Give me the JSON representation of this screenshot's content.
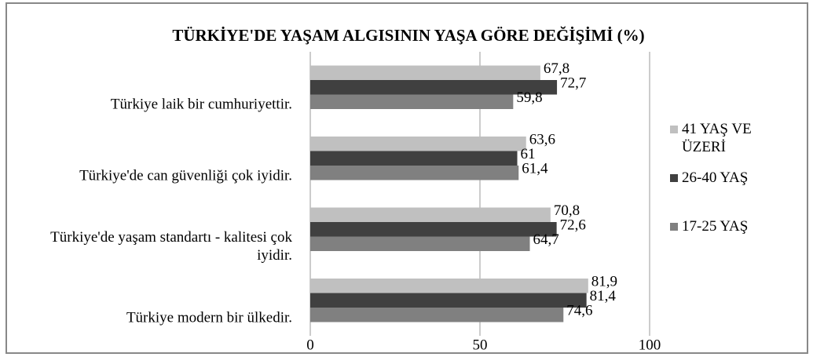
{
  "chart_data": {
    "type": "barh",
    "title": "TÜRKİYE'DE YAŞAM ALGISININ YAŞA GÖRE DEĞİŞİMİ (%)",
    "categories": [
      "Türkiye laik bir cumhuriyettir.",
      "Türkiye'de can güvenliği çok iyidir.",
      "Türkiye'de yaşam standartı - kalitesi çok iyidir.",
      "Türkiye modern bir ülkedir."
    ],
    "series": [
      {
        "name": "41 YAŞ VE ÜZERİ",
        "color": "#c0c0c0",
        "values": [
          67.8,
          63.6,
          70.8,
          81.9
        ],
        "value_labels": [
          "67,8",
          "63,6",
          "70,8",
          "81,9"
        ]
      },
      {
        "name": "26-40 YAŞ",
        "color": "#404040",
        "values": [
          72.7,
          61,
          72.6,
          81.4
        ],
        "value_labels": [
          "72,7",
          "61",
          "72,6",
          "81,4"
        ]
      },
      {
        "name": "17-25 YAŞ",
        "color": "#808080",
        "values": [
          59.8,
          61.4,
          64.7,
          74.6
        ],
        "value_labels": [
          "59,8",
          "61,4",
          "64,7",
          "74,6"
        ]
      }
    ],
    "xlim": [
      0,
      100
    ],
    "xticks": [
      0,
      50,
      100
    ],
    "grid": true,
    "legend": "right"
  }
}
